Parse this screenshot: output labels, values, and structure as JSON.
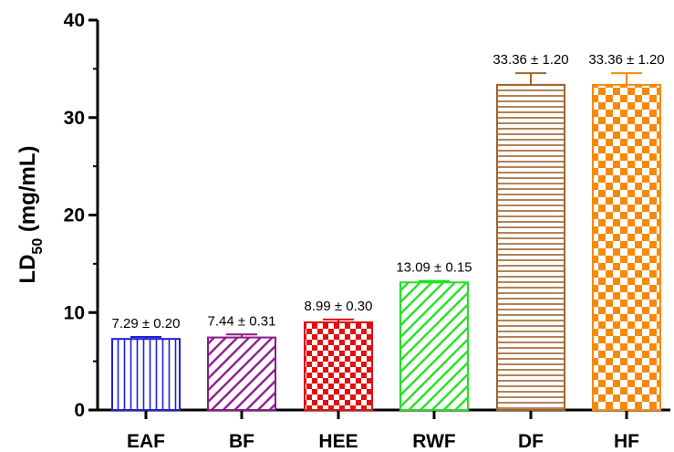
{
  "chart_data": {
    "type": "bar",
    "categories": [
      "EAF",
      "BF",
      "HEE",
      "RWF",
      "DF",
      "HF"
    ],
    "values": [
      7.29,
      7.44,
      8.99,
      13.09,
      33.36,
      33.36
    ],
    "errors": [
      0.2,
      0.31,
      0.3,
      0.15,
      1.2,
      1.2
    ],
    "data_labels": [
      "7.29 ± 0.20",
      "7.44 ± 0.31",
      "8.99 ± 0.30",
      "13.09 ± 0.15",
      "33.36 ± 1.20",
      "33.36 ± 1.20"
    ],
    "bar_colors": [
      "#1f1fd6",
      "#8b1a8b",
      "#e01010",
      "#22e022",
      "#a0642d",
      "#f58a0a"
    ],
    "bar_patterns": [
      "vertical-lines",
      "diagonal-lines",
      "checker",
      "diagonal-lines",
      "horizontal-lines",
      "checker"
    ],
    "ylabel": "LD50 (mg/mL)",
    "ylabel_main": "LD",
    "ylabel_sub": "50",
    "ylabel_unit": " (mg/mL)",
    "ylim": [
      0,
      40
    ],
    "yticks": [
      0,
      10,
      20,
      30,
      40
    ],
    "ytick_labels": [
      "0",
      "10",
      "20",
      "30",
      "40"
    ],
    "grid": false
  }
}
